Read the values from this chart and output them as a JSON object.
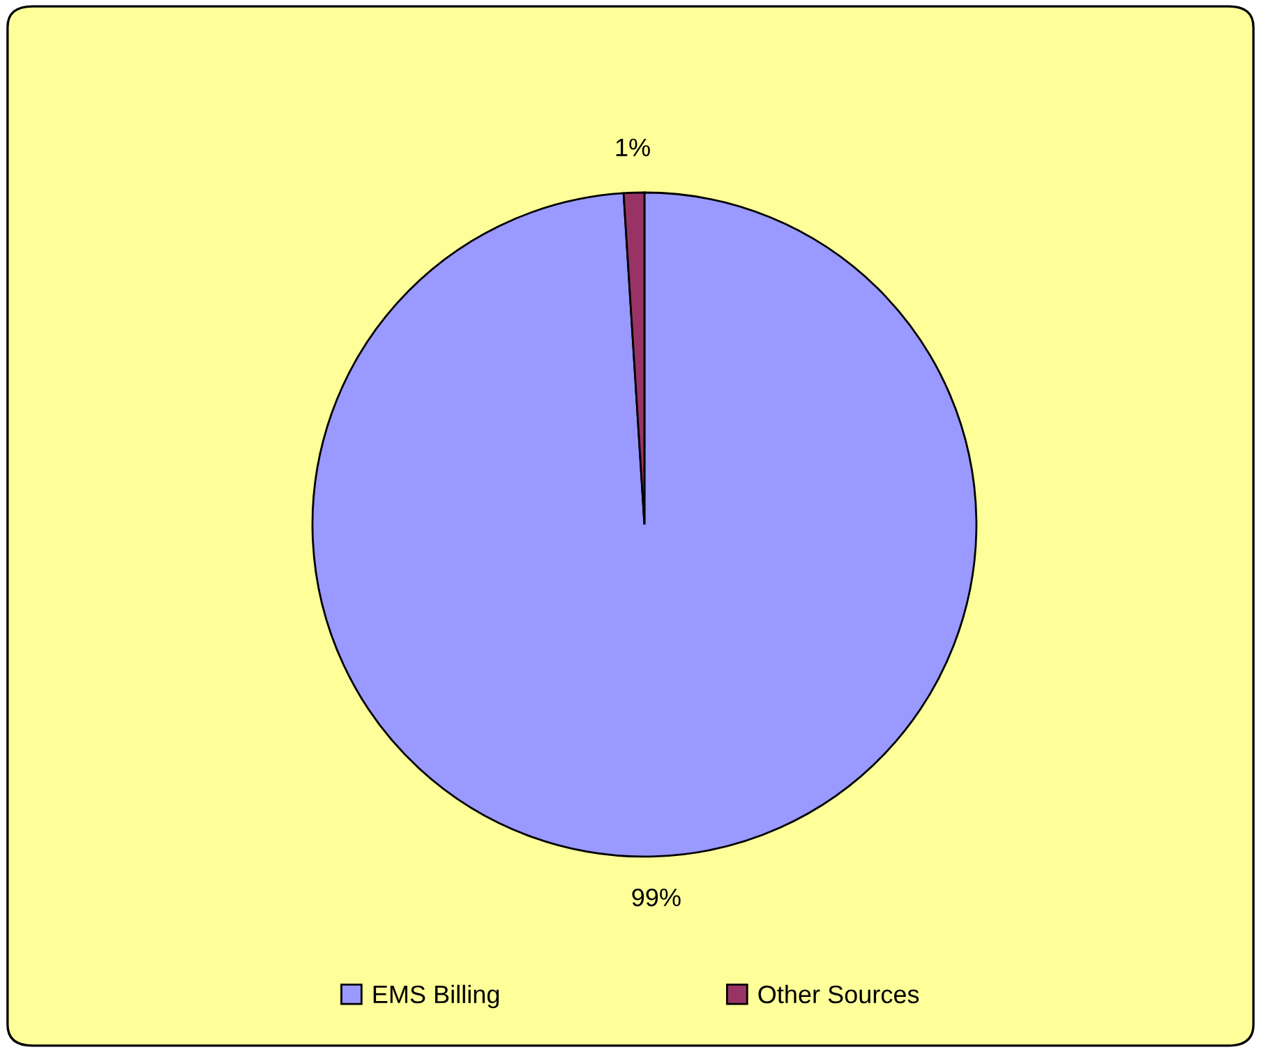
{
  "chart_data": {
    "type": "pie",
    "categories": [
      "EMS Billing",
      "Other Sources"
    ],
    "values": [
      99,
      1
    ],
    "colors": [
      "#9999ff",
      "#993366"
    ],
    "value_labels": [
      "99%",
      "1%"
    ],
    "legend": "bottom"
  }
}
